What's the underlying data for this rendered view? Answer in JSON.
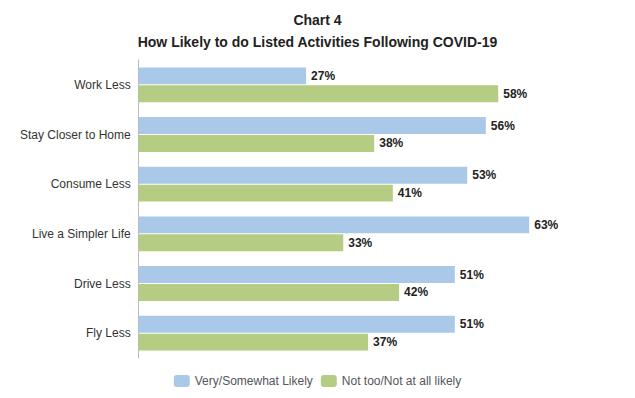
{
  "chart_data": {
    "type": "bar",
    "orientation": "horizontal",
    "title": "Chart 4",
    "subtitle": "How Likely to do Listed Activities Following COVID-19",
    "categories": [
      "Work Less",
      "Stay Closer to Home",
      "Consume Less",
      "Live a Simpler Life",
      "Drive Less",
      "Fly Less"
    ],
    "series": [
      {
        "name": "Very/Somewhat Likely",
        "color": "#aac9e8",
        "values": [
          27,
          56,
          53,
          63,
          51,
          51
        ],
        "value_labels": [
          "27%",
          "56%",
          "53%",
          "63%",
          "51%",
          "51%"
        ]
      },
      {
        "name": "Not too/Not at all likely",
        "color": "#b5cd82",
        "values": [
          58,
          38,
          41,
          33,
          42,
          37
        ],
        "value_labels": [
          "58%",
          "38%",
          "41%",
          "33%",
          "42%",
          "37%"
        ]
      }
    ],
    "xlim": [
      0,
      72
    ],
    "grid": false,
    "legend": "bottom",
    "data_labels": true,
    "tick_labels": "y"
  }
}
